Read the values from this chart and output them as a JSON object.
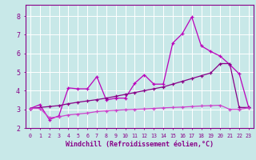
{
  "bg_color": "#c8e8e8",
  "grid_color": "#ffffff",
  "line_color1": "#bb00bb",
  "line_color2": "#880088",
  "line_color3": "#cc44cc",
  "xlabel": "Windchill (Refroidissement éolien,°C)",
  "xlabel_fontsize": 6.0,
  "xtick_labels": [
    "0",
    "1",
    "2",
    "3",
    "4",
    "5",
    "6",
    "7",
    "8",
    "9",
    "10",
    "11",
    "12",
    "13",
    "14",
    "15",
    "16",
    "17",
    "18",
    "19",
    "20",
    "21",
    "22",
    "23"
  ],
  "ytick_labels": [
    "2",
    "3",
    "4",
    "5",
    "6",
    "7",
    "8"
  ],
  "yticks": [
    2,
    3,
    4,
    5,
    6,
    7,
    8
  ],
  "xlim": [
    -0.5,
    23.5
  ],
  "ylim": [
    2.0,
    8.6
  ],
  "line1_x": [
    0,
    1,
    2,
    3,
    4,
    5,
    6,
    7,
    8,
    9,
    10,
    11,
    12,
    13,
    14,
    15,
    16,
    17,
    18,
    19,
    20,
    21,
    22,
    23
  ],
  "line1_y": [
    3.05,
    3.25,
    2.45,
    2.65,
    4.15,
    4.1,
    4.1,
    4.75,
    3.5,
    3.6,
    3.6,
    4.4,
    4.85,
    4.35,
    4.35,
    6.55,
    7.05,
    7.95,
    6.4,
    6.1,
    5.85,
    5.4,
    4.9,
    3.1
  ],
  "line2_x": [
    0,
    1,
    2,
    3,
    4,
    5,
    6,
    7,
    8,
    9,
    10,
    11,
    12,
    13,
    14,
    15,
    16,
    17,
    18,
    19,
    20,
    21,
    22,
    23
  ],
  "line2_y": [
    3.05,
    3.1,
    3.15,
    3.2,
    3.3,
    3.38,
    3.45,
    3.52,
    3.6,
    3.7,
    3.8,
    3.9,
    4.0,
    4.1,
    4.2,
    4.35,
    4.5,
    4.65,
    4.8,
    4.95,
    5.45,
    5.45,
    3.1,
    3.1
  ],
  "line3_x": [
    0,
    1,
    2,
    3,
    4,
    5,
    6,
    7,
    8,
    9,
    10,
    11,
    12,
    13,
    14,
    15,
    16,
    17,
    18,
    19,
    20,
    21,
    22,
    23
  ],
  "line3_y": [
    3.05,
    3.05,
    2.55,
    2.6,
    2.7,
    2.75,
    2.8,
    2.88,
    2.92,
    2.95,
    2.98,
    3.0,
    3.02,
    3.05,
    3.08,
    3.1,
    3.12,
    3.15,
    3.18,
    3.2,
    3.22,
    3.0,
    3.0,
    3.08
  ],
  "marker": "+",
  "markersize": 3.5,
  "linewidth": 0.9
}
